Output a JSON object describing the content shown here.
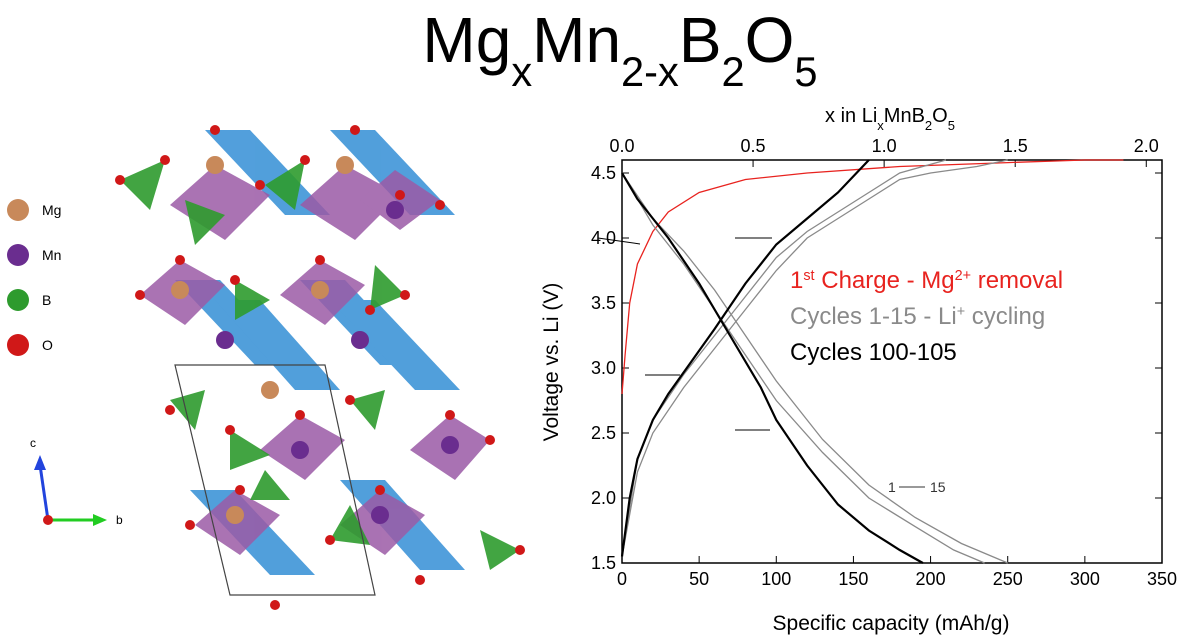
{
  "chart_data": {
    "type": "line",
    "title_parts": [
      {
        "text": "Mg"
      },
      {
        "text": "x",
        "sub": true
      },
      {
        "text": "Mn"
      },
      {
        "text": "2-x",
        "sub": true
      },
      {
        "text": "B"
      },
      {
        "text": "2",
        "sub": true
      },
      {
        "text": "O"
      },
      {
        "text": "5",
        "sub": true
      }
    ],
    "x_label": "Specific capacity (mAh/g)",
    "y_label": "Voltage vs. Li (V)",
    "x2_label_parts": [
      {
        "text": "x in Li"
      },
      {
        "text": "x",
        "sub": true
      },
      {
        "text": "MnB"
      },
      {
        "text": "2",
        "sub": true
      },
      {
        "text": "O"
      },
      {
        "text": "5",
        "sub": true
      }
    ],
    "xlim": [
      0,
      350
    ],
    "xticks": [
      0,
      50,
      100,
      150,
      200,
      250,
      300,
      350
    ],
    "x2lim": [
      0,
      2.06
    ],
    "x2ticks": [
      {
        "value": 0,
        "label": "0.0"
      },
      0.5,
      {
        "value": 1,
        "label": "1.0"
      },
      1.5,
      {
        "value": 2,
        "label": "2.0"
      }
    ],
    "ylim": [
      1.5,
      4.6
    ],
    "yticks": [
      1.5,
      {
        "value": 2,
        "label": "2.0"
      },
      2.5,
      {
        "value": 3,
        "label": "3.0"
      },
      3.5,
      {
        "value": 4,
        "label": "4.0"
      },
      4.5
    ],
    "series": [
      {
        "name": [
          {
            "text": "1"
          },
          {
            "text": "st",
            "sup": true
          },
          {
            "text": " Charge - Mg"
          },
          {
            "text": "2+",
            "sup": true
          },
          {
            "text": " removal"
          }
        ],
        "color": "#e8231f",
        "x": [
          0,
          2,
          5,
          10,
          20,
          30,
          50,
          80,
          120,
          180,
          250,
          300,
          325
        ],
        "values": [
          2.8,
          3.1,
          3.5,
          3.8,
          4.05,
          4.2,
          4.35,
          4.45,
          4.5,
          4.55,
          4.58,
          4.6,
          4.6
        ]
      },
      {
        "name": [
          {
            "text": "Cycles 1-15 - Li"
          },
          {
            "text": "+",
            "sup": true
          },
          {
            "text": " cycling"
          }
        ],
        "color": "#8a8a8a",
        "x": [
          0,
          20,
          40,
          60,
          80,
          100,
          130,
          160,
          190,
          220,
          250
        ],
        "values": [
          4.5,
          4.15,
          3.9,
          3.6,
          3.25,
          2.9,
          2.45,
          2.1,
          1.85,
          1.65,
          1.5
        ]
      },
      {
        "color": "#8a8a8a",
        "x": [
          0,
          20,
          40,
          60,
          80,
          100,
          130,
          160,
          190,
          215,
          235
        ],
        "values": [
          4.5,
          4.1,
          3.8,
          3.45,
          3.1,
          2.75,
          2.35,
          2.0,
          1.78,
          1.6,
          1.5
        ]
      },
      {
        "color": "#8a8a8a",
        "x": [
          0,
          10,
          20,
          40,
          60,
          80,
          100,
          120,
          140,
          160,
          180,
          200,
          230,
          250
        ],
        "values": [
          1.55,
          2.2,
          2.5,
          2.85,
          3.15,
          3.45,
          3.75,
          4.0,
          4.15,
          4.3,
          4.45,
          4.5,
          4.55,
          4.6
        ]
      },
      {
        "color": "#8a8a8a",
        "x": [
          0,
          10,
          20,
          40,
          60,
          80,
          100,
          120,
          140,
          160,
          180,
          210
        ],
        "values": [
          1.55,
          2.3,
          2.6,
          2.95,
          3.25,
          3.55,
          3.85,
          4.05,
          4.2,
          4.35,
          4.5,
          4.6
        ]
      },
      {
        "name": [
          {
            "text": "Cycles 100-105"
          }
        ],
        "color": "#000000",
        "x": [
          0,
          10,
          20,
          30,
          50,
          70,
          90,
          100,
          120,
          140,
          160,
          180,
          195
        ],
        "values": [
          4.5,
          4.3,
          4.15,
          4.0,
          3.65,
          3.25,
          2.85,
          2.6,
          2.25,
          1.95,
          1.75,
          1.6,
          1.5
        ]
      },
      {
        "color": "#000000",
        "x": [
          0,
          5,
          10,
          20,
          30,
          45,
          60,
          80,
          100,
          120,
          140,
          160
        ],
        "values": [
          1.55,
          2.0,
          2.3,
          2.6,
          2.8,
          3.05,
          3.3,
          3.65,
          3.95,
          4.15,
          4.35,
          4.6
        ]
      }
    ],
    "annotation": {
      "from": "1",
      "to": "15"
    },
    "structure_legend": [
      {
        "label": "Mg",
        "color": "#c8895a"
      },
      {
        "label": "Mn",
        "color": "#6a2d8f"
      },
      {
        "label": "B",
        "color": "#2e9b2e"
      },
      {
        "label": "O",
        "color": "#d01818"
      }
    ],
    "structure_axes": {
      "c": "c",
      "b": "b"
    }
  }
}
